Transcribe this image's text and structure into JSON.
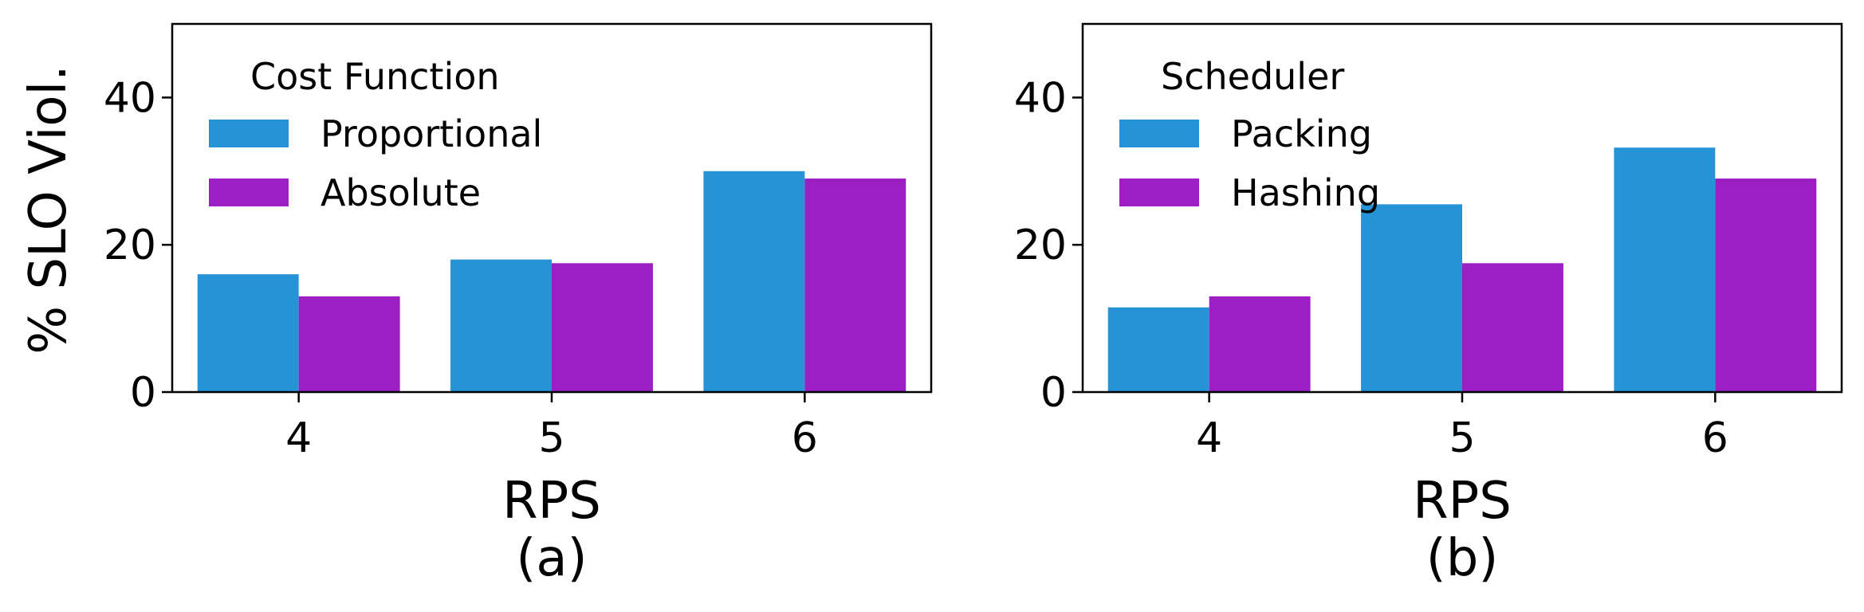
{
  "shared": {
    "ylabel": "% SLO Viol.",
    "colors": {
      "series_a": "#2593d6",
      "series_b": "#9c1fc4"
    }
  },
  "chart_data": [
    {
      "type": "bar",
      "categories": [
        "4",
        "5",
        "6"
      ],
      "series": [
        {
          "name": "Proportional",
          "values": [
            16,
            18,
            30
          ]
        },
        {
          "name": "Absolute",
          "values": [
            13,
            17.5,
            29
          ]
        }
      ],
      "xlabel": "RPS",
      "ylabel": "% SLO Viol.",
      "caption": "(a)",
      "legend_title": "Cost Function",
      "legend_position": "upper-left",
      "ylim": [
        0,
        50
      ],
      "yticks": [
        0,
        20,
        40
      ]
    },
    {
      "type": "bar",
      "categories": [
        "4",
        "5",
        "6"
      ],
      "series": [
        {
          "name": "Packing",
          "values": [
            11.5,
            25.5,
            33.2
          ]
        },
        {
          "name": "Hashing",
          "values": [
            13,
            17.5,
            29
          ]
        }
      ],
      "xlabel": "RPS",
      "ylabel": "",
      "caption": "(b)",
      "legend_title": "Scheduler",
      "legend_position": "upper-left",
      "ylim": [
        0,
        50
      ],
      "yticks": [
        0,
        20,
        40
      ]
    }
  ]
}
